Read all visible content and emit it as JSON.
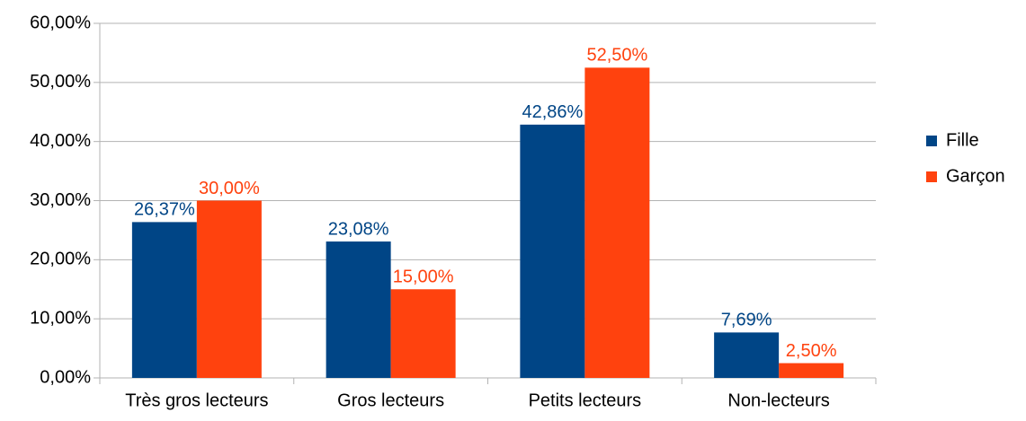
{
  "chart_data": {
    "type": "bar",
    "categories": [
      "Très gros lecteurs",
      "Gros lecteurs",
      "Petits lecteurs",
      "Non-lecteurs"
    ],
    "series": [
      {
        "name": "Fille",
        "color": "#004586",
        "values": [
          26.37,
          23.08,
          42.86,
          7.69
        ],
        "value_labels": [
          "26,37%",
          "23,08%",
          "42,86%",
          "7,69%"
        ]
      },
      {
        "name": "Garçon",
        "color": "#ff420e",
        "values": [
          30,
          15,
          52.5,
          2.5
        ],
        "value_labels": [
          "30,00%",
          "15,00%",
          "52,50%",
          "2,50%"
        ]
      }
    ],
    "ylim": [
      0,
      60
    ],
    "yticks": [
      {
        "value": 0,
        "label": "0,00%"
      },
      {
        "value": 10,
        "label": "10,00%"
      },
      {
        "value": 20,
        "label": "20,00%"
      },
      {
        "value": 30,
        "label": "30,00%"
      },
      {
        "value": 40,
        "label": "40,00%"
      },
      {
        "value": 50,
        "label": "50,00%"
      },
      {
        "value": 60,
        "label": "60,00%"
      }
    ],
    "grid": true,
    "legend": "right"
  }
}
